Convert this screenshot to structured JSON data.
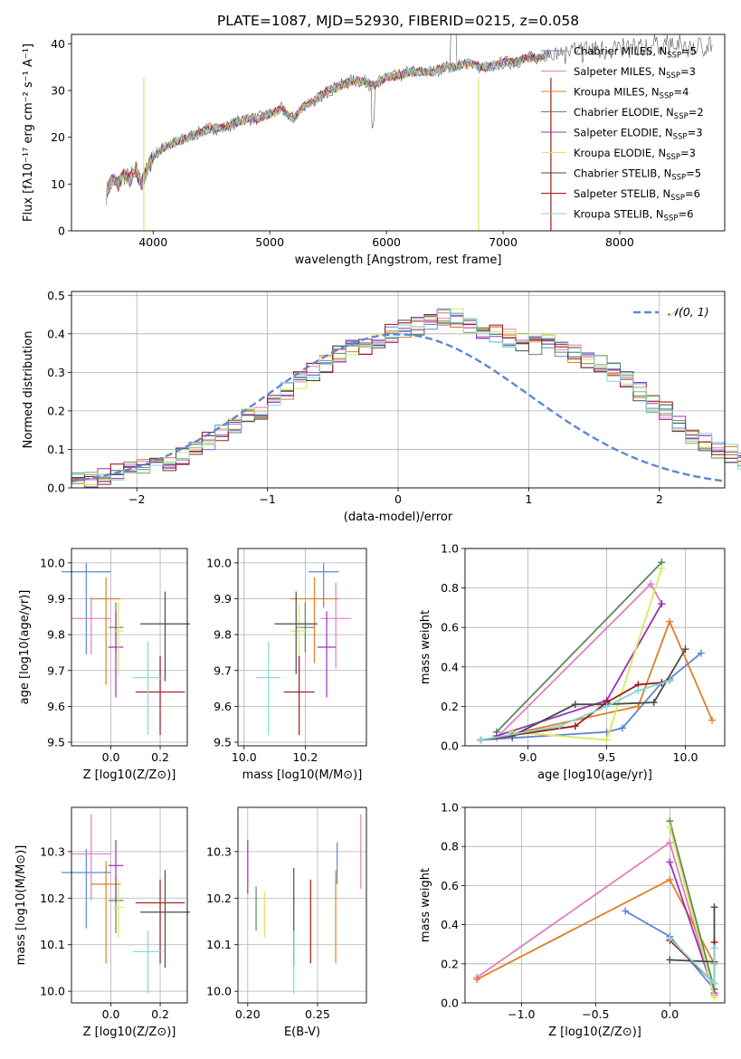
{
  "figure_title": "PLATE=1087, MJD=52930, FIBERID=0215, z=0.058",
  "colors": {
    "chabrier_miles": "#5f86d8",
    "salpeter_miles": "#e07fc0",
    "kroupa_miles": "#e07f27",
    "chabrier_elodie": "#5a8a5a",
    "salpeter_elodie": "#9b30c0",
    "kroupa_elodie": "#d4ec5a",
    "chabrier_stelib": "#4a4a4a",
    "salpeter_stelib": "#a01818",
    "kroupa_stelib": "#80d8d8",
    "gauss": "#5f86d8",
    "grid": "#b0b0b0"
  },
  "chart_data": [
    {
      "id": "spectrum",
      "type": "line",
      "title": "PLATE=1087, MJD=52930, FIBERID=0215, z=0.058",
      "xlabel": "wavelength [Angstrom, rest frame]",
      "ylabel": "Flux [fλ10⁻¹⁷ erg cm⁻² s⁻¹ A⁻¹]",
      "xlim": [
        3300,
        8900
      ],
      "ylim": [
        0,
        42
      ],
      "xticks": [
        4000,
        5000,
        6000,
        7000,
        8000
      ],
      "yticks": [
        0,
        10,
        20,
        30,
        40
      ],
      "grid": false,
      "legend_position": "right",
      "data_x": [
        3600,
        3650,
        3700,
        3750,
        3800,
        3850,
        3900,
        3950,
        4000,
        4100,
        4200,
        4300,
        4400,
        4500,
        4600,
        4700,
        4800,
        4900,
        5000,
        5100,
        5200,
        5300,
        5400,
        5500,
        5600,
        5700,
        5800,
        5900,
        6000,
        6100,
        6200,
        6300,
        6400,
        6500,
        6600,
        6700,
        6800,
        6900,
        7000,
        7100,
        7200,
        7300,
        7400,
        7600,
        7800,
        8000,
        8200,
        8400,
        8600,
        8800
      ],
      "data_y": [
        8,
        11,
        10,
        12,
        11,
        13,
        10,
        13,
        16,
        18,
        19,
        20,
        21,
        22,
        22,
        23,
        24,
        24,
        25,
        26,
        24,
        27,
        28,
        30,
        31,
        32,
        32,
        31,
        33,
        33,
        34,
        34,
        34,
        35,
        35,
        36,
        35,
        35,
        36,
        36,
        37,
        37,
        38,
        38,
        39,
        39,
        39,
        40,
        39,
        40
      ],
      "model_end_x": 7400,
      "model_drops_x": [
        {
          "series": 5,
          "x": 3920
        },
        {
          "series": 5,
          "x": 6790
        },
        {
          "series": 7,
          "x": 7410
        }
      ],
      "series": [
        {
          "name": "Chabrier MILES, N_SSP=5",
          "label_main": "Chabrier MILES, N",
          "label_sub": "SSP",
          "label_tail": "=5",
          "color_key": "chabrier_miles"
        },
        {
          "name": "Salpeter MILES, N_SSP=3",
          "label_main": "Salpeter MILES, N",
          "label_sub": "SSP",
          "label_tail": "=3",
          "color_key": "salpeter_miles"
        },
        {
          "name": "Kroupa MILES, N_SSP=4",
          "label_main": "Kroupa MILES, N",
          "label_sub": "SSP",
          "label_tail": "=4",
          "color_key": "kroupa_miles"
        },
        {
          "name": "Chabrier ELODIE, N_SSP=2",
          "label_main": "Chabrier ELODIE, N",
          "label_sub": "SSP",
          "label_tail": "=2",
          "color_key": "chabrier_elodie"
        },
        {
          "name": "Salpeter ELODIE, N_SSP=3",
          "label_main": "Salpeter ELODIE, N",
          "label_sub": "SSP",
          "label_tail": "=3",
          "color_key": "salpeter_elodie"
        },
        {
          "name": "Kroupa ELODIE, N_SSP=3",
          "label_main": "Kroupa ELODIE, N",
          "label_sub": "SSP",
          "label_tail": "=3",
          "color_key": "kroupa_elodie"
        },
        {
          "name": "Chabrier STELIB, N_SSP=5",
          "label_main": "Chabrier STELIB, N",
          "label_sub": "SSP",
          "label_tail": "=5",
          "color_key": "chabrier_stelib"
        },
        {
          "name": "Salpeter STELIB, N_SSP=6",
          "label_main": "Salpeter STELIB, N",
          "label_sub": "SSP",
          "label_tail": "=6",
          "color_key": "salpeter_stelib"
        },
        {
          "name": "Kroupa STELIB, N_SSP=6",
          "label_main": "Kroupa STELIB, N",
          "label_sub": "SSP",
          "label_tail": "=6",
          "color_key": "kroupa_stelib"
        }
      ]
    },
    {
      "id": "residuals",
      "type": "histogram",
      "xlabel": "(data-model)/error",
      "ylabel": "Normed distribution",
      "xlim": [
        -2.5,
        2.5
      ],
      "ylim": [
        0,
        0.51
      ],
      "xticks": [
        -2,
        -1,
        0,
        1,
        2
      ],
      "yticks": [
        0.0,
        0.1,
        0.2,
        0.3,
        0.4,
        0.5
      ],
      "grid": true,
      "legend_position": "top-right",
      "legend_label": "𝒩(0, 1)",
      "bin_width": 0.1,
      "bins_start": -2.5,
      "histogram_base": [
        0.02,
        0.025,
        0.03,
        0.04,
        0.05,
        0.055,
        0.06,
        0.07,
        0.085,
        0.1,
        0.12,
        0.14,
        0.16,
        0.18,
        0.2,
        0.22,
        0.25,
        0.28,
        0.3,
        0.32,
        0.35,
        0.36,
        0.37,
        0.38,
        0.4,
        0.41,
        0.42,
        0.43,
        0.44,
        0.44,
        0.42,
        0.41,
        0.4,
        0.39,
        0.38,
        0.37,
        0.38,
        0.36,
        0.35,
        0.33,
        0.32,
        0.3,
        0.28,
        0.25,
        0.22,
        0.2,
        0.17,
        0.14,
        0.12,
        0.1,
        0.09,
        0.07,
        0.06,
        0.055,
        0.05,
        0.045,
        0.04,
        0.035,
        0.03,
        0.025
      ],
      "gaussian": {
        "mean": 0,
        "sigma": 1
      }
    },
    {
      "id": "age_vs_Z",
      "type": "errorbar",
      "xlabel": "Z [log10(Z/Z⊙)]",
      "ylabel": "age  [log10(age/yr)]",
      "xlim": [
        -0.16,
        0.31
      ],
      "ylim": [
        9.49,
        10.04
      ],
      "xticks": [
        0.0,
        0.2
      ],
      "yticks": [
        9.5,
        9.6,
        9.7,
        9.8,
        9.9,
        10.0
      ],
      "grid": true,
      "points": [
        {
          "x": -0.1,
          "xerr": 0.1,
          "y": 9.975,
          "yerr": 0.025,
          "yerr_lo": 0.23,
          "color_key": "chabrier_miles"
        },
        {
          "x": -0.08,
          "xerr": 0.08,
          "y": 9.845,
          "yerr": 0.06,
          "yerr_lo": 0.1,
          "color_key": "salpeter_miles"
        },
        {
          "x": -0.02,
          "xerr": 0.06,
          "y": 9.9,
          "yerr": 0.06,
          "yerr_lo": 0.24,
          "color_key": "kroupa_miles"
        },
        {
          "x": 0.02,
          "xerr": 0.03,
          "y": 9.82,
          "yerr": 0.07,
          "yerr_lo": 0.07,
          "color_key": "chabrier_elodie"
        },
        {
          "x": 0.02,
          "xerr": 0.03,
          "y": 9.765,
          "yerr": 0.1,
          "yerr_lo": 0.14,
          "color_key": "salpeter_elodie"
        },
        {
          "x": 0.03,
          "xerr": 0.02,
          "y": 9.81,
          "yerr": 0.08,
          "yerr_lo": 0.12,
          "color_key": "kroupa_elodie"
        },
        {
          "x": 0.22,
          "xerr": 0.1,
          "y": 9.83,
          "yerr": 0.09,
          "yerr_lo": 0.16,
          "color_key": "chabrier_stelib"
        },
        {
          "x": 0.2,
          "xerr": 0.1,
          "y": 9.64,
          "yerr": 0.1,
          "yerr_lo": 0.12,
          "color_key": "salpeter_stelib"
        },
        {
          "x": 0.15,
          "xerr": 0.06,
          "y": 9.68,
          "yerr": 0.1,
          "yerr_lo": 0.16,
          "color_key": "kroupa_stelib"
        }
      ]
    },
    {
      "id": "age_vs_mass",
      "type": "errorbar",
      "xlabel": "mass [log10(M/M⊙)]",
      "ylabel": "",
      "xlim": [
        9.98,
        10.4
      ],
      "ylim": [
        9.49,
        10.04
      ],
      "xticks": [
        10.0,
        10.2
      ],
      "yticks": [
        9.5,
        9.6,
        9.7,
        9.8,
        9.9,
        10.0
      ],
      "grid": true,
      "points": [
        {
          "x": 10.26,
          "xerr": 0.05,
          "y": 9.975,
          "yerr": 0.025,
          "yerr_lo": 0.1,
          "color_key": "chabrier_miles"
        },
        {
          "x": 10.3,
          "xerr": 0.05,
          "y": 9.845,
          "yerr": 0.1,
          "yerr_lo": 0.14,
          "color_key": "salpeter_miles"
        },
        {
          "x": 10.23,
          "xerr": 0.08,
          "y": 9.9,
          "yerr": 0.06,
          "yerr_lo": 0.18,
          "color_key": "kroupa_miles"
        },
        {
          "x": 10.2,
          "xerr": 0.03,
          "y": 9.82,
          "yerr": 0.07,
          "yerr_lo": 0.07,
          "color_key": "chabrier_elodie"
        },
        {
          "x": 10.27,
          "xerr": 0.03,
          "y": 9.765,
          "yerr": 0.1,
          "yerr_lo": 0.14,
          "color_key": "salpeter_elodie"
        },
        {
          "x": 10.18,
          "xerr": 0.03,
          "y": 9.81,
          "yerr": 0.08,
          "yerr_lo": 0.12,
          "color_key": "kroupa_elodie"
        },
        {
          "x": 10.17,
          "xerr": 0.07,
          "y": 9.83,
          "yerr": 0.09,
          "yerr_lo": 0.14,
          "color_key": "chabrier_stelib"
        },
        {
          "x": 10.18,
          "xerr": 0.05,
          "y": 9.64,
          "yerr": 0.1,
          "yerr_lo": 0.12,
          "color_key": "salpeter_stelib"
        },
        {
          "x": 10.08,
          "xerr": 0.04,
          "y": 9.68,
          "yerr": 0.1,
          "yerr_lo": 0.16,
          "color_key": "kroupa_stelib"
        }
      ]
    },
    {
      "id": "massweight_vs_age",
      "type": "line",
      "xlabel": "age  [log10(age/yr)]",
      "ylabel": "mass weight",
      "xlim": [
        8.6,
        10.25
      ],
      "ylim": [
        0,
        1.0
      ],
      "xticks": [
        9.0,
        9.5,
        10.0
      ],
      "yticks": [
        0.0,
        0.2,
        0.4,
        0.6,
        0.8,
        1.0
      ],
      "grid": true,
      "series": [
        {
          "color_key": "chabrier_miles",
          "x": [
            8.7,
            8.9,
            9.5,
            9.6,
            9.85,
            9.9,
            10.1
          ],
          "y": [
            0.03,
            0.04,
            0.07,
            0.09,
            0.32,
            0.34,
            0.47
          ]
        },
        {
          "color_key": "salpeter_miles",
          "x": [
            8.8,
            9.78,
            9.85
          ],
          "y": [
            0.04,
            0.82,
            0.72
          ]
        },
        {
          "color_key": "kroupa_miles",
          "x": [
            8.9,
            9.7,
            9.9,
            10.17
          ],
          "y": [
            0.06,
            0.2,
            0.63,
            0.13
          ]
        },
        {
          "color_key": "chabrier_elodie",
          "x": [
            8.8,
            9.85
          ],
          "y": [
            0.07,
            0.93
          ]
        },
        {
          "color_key": "salpeter_elodie",
          "x": [
            8.8,
            9.5,
            9.85
          ],
          "y": [
            0.05,
            0.23,
            0.72
          ]
        },
        {
          "color_key": "kroupa_elodie",
          "x": [
            8.9,
            9.5,
            9.85
          ],
          "y": [
            0.07,
            0.03,
            0.9
          ]
        },
        {
          "color_key": "chabrier_stelib",
          "x": [
            8.7,
            8.9,
            9.3,
            9.5,
            9.8,
            10.0
          ],
          "y": [
            0.03,
            0.05,
            0.21,
            0.21,
            0.22,
            0.49
          ]
        },
        {
          "color_key": "salpeter_stelib",
          "x": [
            8.7,
            9.3,
            9.5,
            9.7,
            9.85,
            9.9
          ],
          "y": [
            0.03,
            0.1,
            0.22,
            0.31,
            0.32,
            0.33
          ]
        },
        {
          "color_key": "kroupa_stelib",
          "x": [
            8.7,
            9.2,
            9.5,
            9.7,
            9.9
          ],
          "y": [
            0.03,
            0.1,
            0.2,
            0.28,
            0.33
          ]
        }
      ]
    },
    {
      "id": "mass_vs_Z",
      "type": "errorbar",
      "xlabel": "Z [log10(Z/Z⊙)]",
      "ylabel": "mass [log10(M/M⊙)]",
      "xlim": [
        -0.16,
        0.31
      ],
      "ylim": [
        9.975,
        10.395
      ],
      "xticks": [
        0.0,
        0.2
      ],
      "yticks": [
        10.0,
        10.1,
        10.2,
        10.3
      ],
      "grid": true,
      "points": [
        {
          "x": -0.1,
          "xerr": 0.1,
          "y": 10.255,
          "yerr": 0.05,
          "yerr_lo": 0.12,
          "color_key": "chabrier_miles"
        },
        {
          "x": -0.08,
          "xerr": 0.08,
          "y": 10.295,
          "yerr": 0.085,
          "yerr_lo": 0.1,
          "color_key": "salpeter_miles"
        },
        {
          "x": -0.02,
          "xerr": 0.06,
          "y": 10.23,
          "yerr": 0.05,
          "yerr_lo": 0.17,
          "color_key": "kroupa_miles"
        },
        {
          "x": 0.02,
          "xerr": 0.03,
          "y": 10.195,
          "yerr": 0.05,
          "yerr_lo": 0.07,
          "color_key": "chabrier_elodie"
        },
        {
          "x": 0.02,
          "xerr": 0.03,
          "y": 10.27,
          "yerr": 0.055,
          "yerr_lo": 0.08,
          "color_key": "salpeter_elodie"
        },
        {
          "x": 0.03,
          "xerr": 0.02,
          "y": 10.18,
          "yerr": 0.06,
          "yerr_lo": 0.065,
          "color_key": "kroupa_elodie"
        },
        {
          "x": 0.22,
          "xerr": 0.1,
          "y": 10.17,
          "yerr": 0.09,
          "yerr_lo": 0.12,
          "color_key": "chabrier_stelib"
        },
        {
          "x": 0.2,
          "xerr": 0.1,
          "y": 10.19,
          "yerr": 0.05,
          "yerr_lo": 0.13,
          "color_key": "salpeter_stelib"
        },
        {
          "x": 0.15,
          "xerr": 0.06,
          "y": 10.085,
          "yerr": 0.045,
          "yerr_lo": 0.09,
          "color_key": "kroupa_stelib"
        }
      ]
    },
    {
      "id": "mass_vs_ebv",
      "type": "errorbar",
      "xlabel": "E(B-V)",
      "ylabel": "",
      "xlim": [
        0.193,
        0.285
      ],
      "ylim": [
        9.975,
        10.395
      ],
      "xticks": [
        0.2,
        0.25
      ],
      "yticks": [
        10.0,
        10.1,
        10.2,
        10.3
      ],
      "grid": true,
      "points": [
        {
          "x": 0.264,
          "y": 10.27,
          "yerr": 0.05,
          "yerr_lo": 0.04,
          "color_key": "chabrier_miles"
        },
        {
          "x": 0.281,
          "y": 10.3,
          "yerr": 0.08,
          "yerr_lo": 0.08,
          "color_key": "salpeter_miles"
        },
        {
          "x": 0.263,
          "y": 10.2,
          "yerr": 0.06,
          "yerr_lo": 0.14,
          "color_key": "kroupa_miles"
        },
        {
          "x": 0.206,
          "y": 10.18,
          "yerr": 0.045,
          "yerr_lo": 0.05,
          "color_key": "chabrier_elodie"
        },
        {
          "x": 0.2,
          "y": 10.27,
          "yerr": 0.055,
          "yerr_lo": 0.06,
          "color_key": "salpeter_elodie"
        },
        {
          "x": 0.212,
          "y": 10.17,
          "yerr": 0.045,
          "yerr_lo": 0.055,
          "color_key": "kroupa_elodie"
        },
        {
          "x": 0.233,
          "y": 10.17,
          "yerr": 0.095,
          "yerr_lo": 0.115,
          "color_key": "chabrier_stelib"
        },
        {
          "x": 0.245,
          "y": 10.19,
          "yerr": 0.05,
          "yerr_lo": 0.13,
          "color_key": "salpeter_stelib"
        },
        {
          "x": 0.233,
          "y": 10.085,
          "yerr": 0.045,
          "yerr_lo": 0.09,
          "color_key": "kroupa_stelib"
        }
      ]
    },
    {
      "id": "massweight_vs_Z",
      "type": "line",
      "xlabel": "Z [log10(Z/Z⊙)]",
      "ylabel": "mass weight",
      "xlim": [
        -1.38,
        0.37
      ],
      "ylim": [
        0,
        1.0
      ],
      "xticks": [
        -1.0,
        -0.5,
        0.0
      ],
      "yticks": [
        0.0,
        0.2,
        0.4,
        0.6,
        0.8,
        1.0
      ],
      "grid": true,
      "series": [
        {
          "color_key": "chabrier_miles",
          "x": [
            -0.3,
            0.0,
            0.3
          ],
          "y": [
            0.47,
            0.34,
            0.07
          ]
        },
        {
          "color_key": "salpeter_miles",
          "x": [
            -1.3,
            0.0,
            0.3
          ],
          "y": [
            0.13,
            0.82,
            0.04
          ]
        },
        {
          "color_key": "kroupa_miles",
          "x": [
            -1.3,
            0.0,
            0.3
          ],
          "y": [
            0.12,
            0.63,
            0.2
          ]
        },
        {
          "color_key": "chabrier_elodie",
          "x": [
            0.0,
            0.3
          ],
          "y": [
            0.93,
            0.07
          ]
        },
        {
          "color_key": "salpeter_elodie",
          "x": [
            0.0,
            0.3
          ],
          "y": [
            0.72,
            0.05
          ]
        },
        {
          "color_key": "kroupa_elodie",
          "x": [
            0.0,
            0.3
          ],
          "y": [
            0.9,
            0.03
          ]
        },
        {
          "color_key": "chabrier_stelib",
          "x": [
            0.0,
            0.3,
            0.3
          ],
          "y": [
            0.22,
            0.21,
            0.49
          ]
        },
        {
          "color_key": "salpeter_stelib",
          "x": [
            0.0,
            0.3,
            0.3
          ],
          "y": [
            0.32,
            0.1,
            0.31
          ]
        },
        {
          "color_key": "kroupa_stelib",
          "x": [
            0.0,
            0.3,
            0.3
          ],
          "y": [
            0.33,
            0.1,
            0.28
          ]
        }
      ]
    }
  ]
}
